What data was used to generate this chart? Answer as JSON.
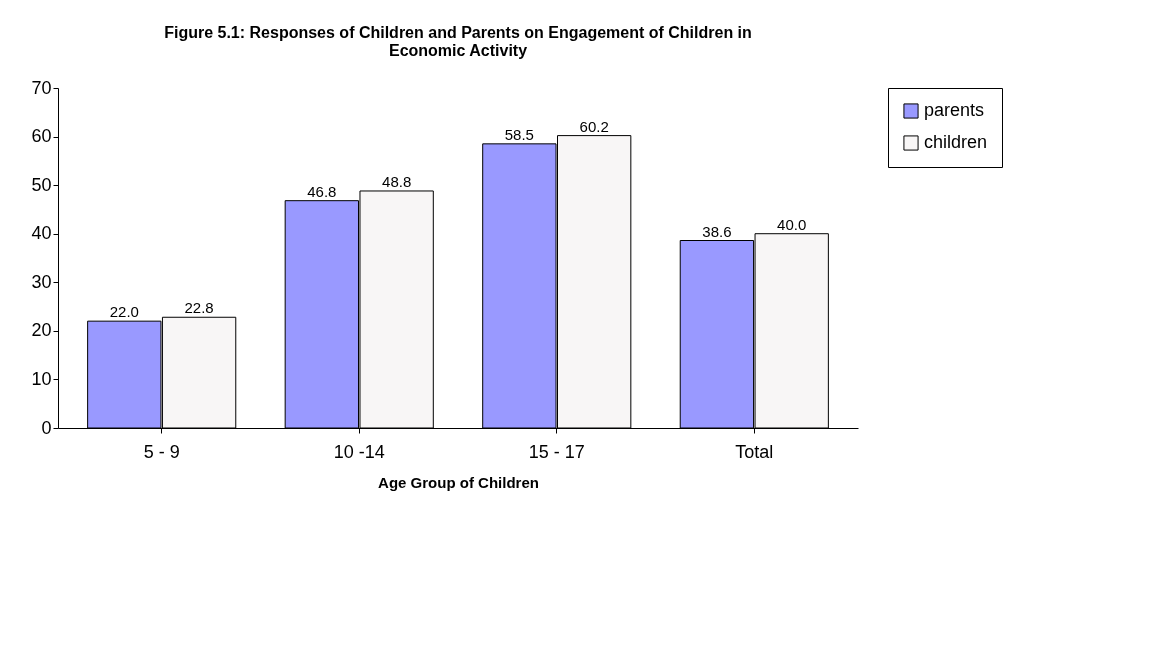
{
  "chart_data": {
    "type": "bar",
    "title": "Figure 5.1:  Responses of Children and Parents on Engagement of Children in Economic Activity",
    "xlabel": "Age Group of Children",
    "categories": [
      "5  -  9",
      "10 -14",
      "15 - 17",
      "Total"
    ],
    "series": [
      {
        "name": "parents",
        "color": "#9999ff",
        "values": [
          22.0,
          46.8,
          58.5,
          38.6
        ],
        "value_labels": [
          "22.0",
          "46.8",
          "58.5",
          "38.6"
        ]
      },
      {
        "name": "children",
        "color": "#f8f6f6",
        "values": [
          22.8,
          48.8,
          60.2,
          40.0
        ],
        "value_labels": [
          "22.8",
          "48.8",
          "60.2",
          "40.0"
        ]
      }
    ],
    "ylim": [
      0,
      70
    ],
    "yticks": [
      0,
      10,
      20,
      30,
      40,
      50,
      60,
      70
    ],
    "grid": false,
    "legend": "right"
  }
}
